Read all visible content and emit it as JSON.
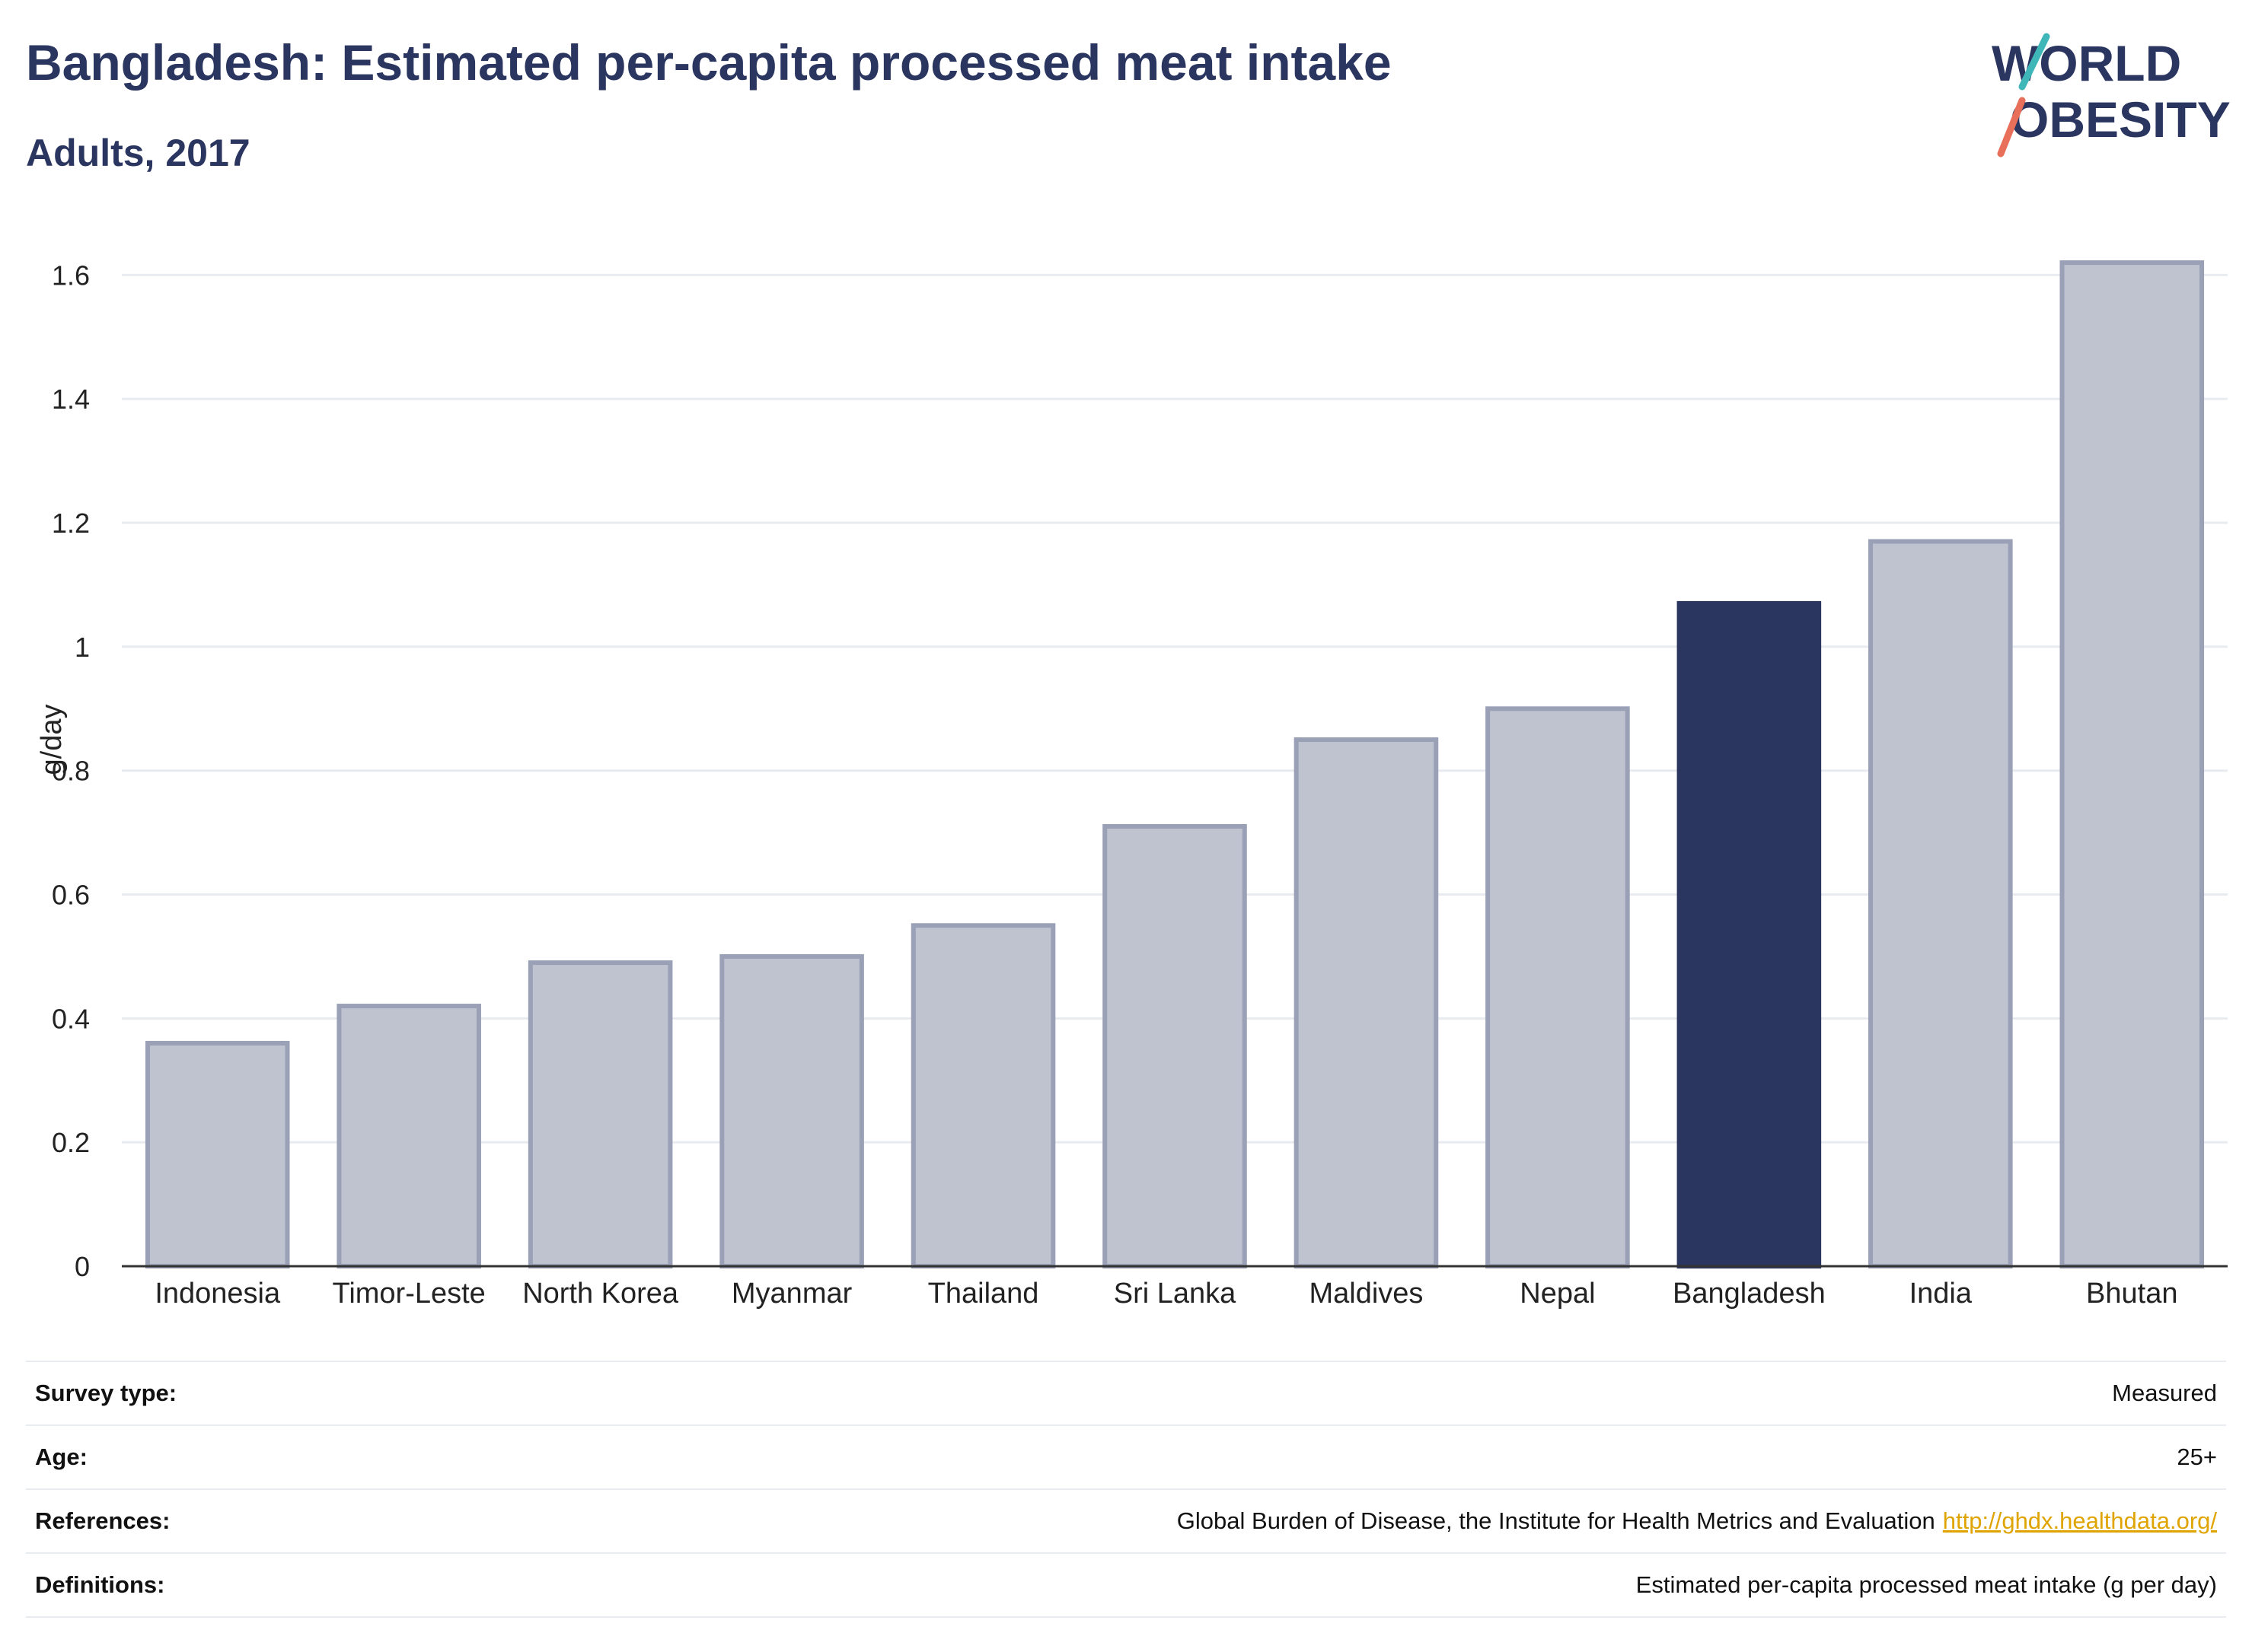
{
  "header": {
    "title": "Bangladesh: Estimated per-capita processed meat intake",
    "subtitle": "Adults, 2017"
  },
  "logo": {
    "line1": "WORLD",
    "line2": "OBESITY",
    "accent_teal": "#3fb6b8",
    "accent_coral": "#e8705a",
    "text_color": "#2a3560"
  },
  "chart_data": {
    "type": "bar",
    "categories": [
      "Indonesia",
      "Timor-Leste",
      "North Korea",
      "Myanmar",
      "Thailand",
      "Sri Lanka",
      "Maldives",
      "Nepal",
      "Bangladesh",
      "India",
      "Bhutan"
    ],
    "values": [
      0.36,
      0.42,
      0.49,
      0.5,
      0.55,
      0.71,
      0.85,
      0.9,
      1.07,
      1.17,
      1.62
    ],
    "highlight": "Bangladesh",
    "title": "",
    "xlabel": "",
    "ylabel": "g/day",
    "ylim": [
      0,
      1.7
    ],
    "yticks": [
      0,
      0.2,
      0.4,
      0.6,
      0.8,
      1,
      1.2,
      1.4,
      1.6
    ],
    "ytick_labels": [
      "0",
      "0.2",
      "0.4",
      "0.6",
      "0.8",
      "1",
      "1.2",
      "1.4",
      "1.6"
    ],
    "grid": true,
    "colors": {
      "bar": "#bfc3d0",
      "bar_edge": "#9aa0b6",
      "highlight": "#2a3560",
      "grid": "#e8ebef",
      "axis": "#333333"
    }
  },
  "info": {
    "rows": [
      {
        "label": "Survey type:",
        "value": "Measured"
      },
      {
        "label": "Age:",
        "value": "25+"
      },
      {
        "label": "References:",
        "value": "Global Burden of Disease, the Institute for Health Metrics and Evaluation",
        "link": "http://ghdx.healthdata.org/"
      },
      {
        "label": "Definitions:",
        "value": "Estimated per-capita processed meat intake (g per day)"
      }
    ]
  }
}
